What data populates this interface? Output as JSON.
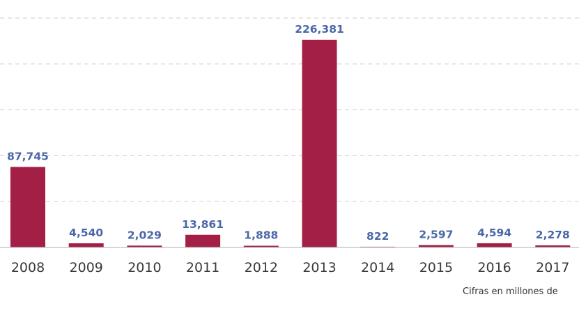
{
  "chart_data": {
    "type": "bar",
    "categories": [
      "2008",
      "2009",
      "2010",
      "2011",
      "2012",
      "2013",
      "2014",
      "2015",
      "2016",
      "2017"
    ],
    "values": [
      87745,
      4540,
      2029,
      13861,
      1888,
      226381,
      822,
      2597,
      4594,
      2278
    ],
    "value_labels": [
      "87,745",
      "4,540",
      "2,029",
      "13,861",
      "1,888",
      "226,381",
      "822",
      "2,597",
      "4,594",
      "2,278"
    ],
    "ylim": [
      0,
      260000
    ],
    "gridlines": [
      50000,
      100000,
      150000,
      200000,
      250000
    ],
    "grid": true,
    "bar_color": "#a31f45",
    "label_color": "#4a68a8"
  },
  "footnote": "Cifras en millones de"
}
